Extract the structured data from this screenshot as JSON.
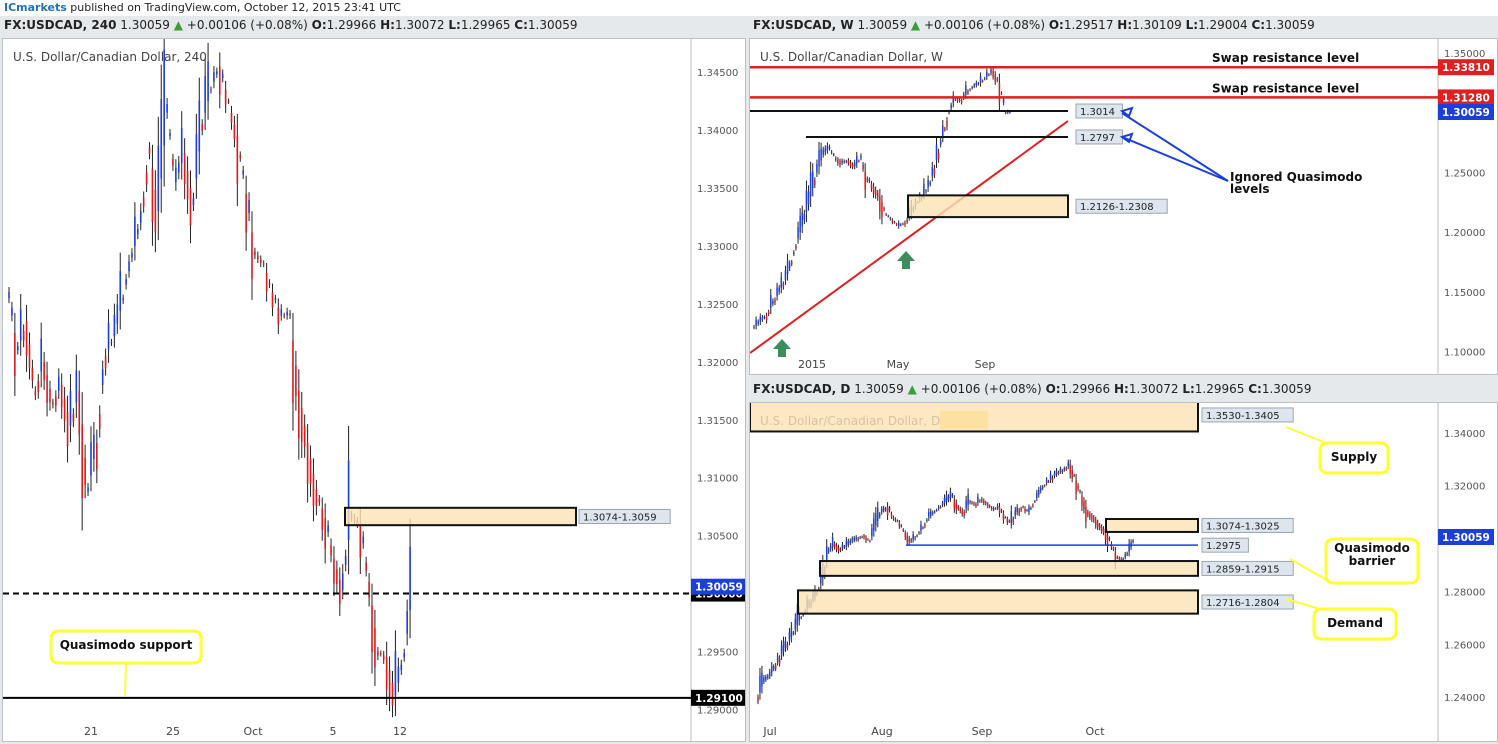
{
  "topbar": {
    "brand": "ICmarkets",
    "text": " published on TradingView.com, October 12, 2015 23:41 UTC"
  },
  "colors": {
    "bull": "#1c3fd6",
    "bear": "#d91c1c",
    "zone_fill": "#fbe4b5",
    "callout": "#ffff33",
    "red_line": "#e02020",
    "blue_line": "#1a3fd9",
    "arrow_green": "#3c8c5c"
  },
  "panels": [
    {
      "id": "h4",
      "header": {
        "symbol": "FX:USDCAD, 240",
        "price": "1.30059",
        "change": "+0.00106 (+0.08%)",
        "o_label": "O:",
        "o": "1.29966",
        "h_label": "H:",
        "h": "1.30072",
        "l_label": "L:",
        "l": "1.29965",
        "c_label": "C:",
        "c": "1.30059"
      },
      "title": "U.S. Dollar/Canadian Dollar, 240",
      "chart_data": {
        "type": "candlestick",
        "timeframe": "240",
        "x_ticks": [
          "21",
          "25",
          "Oct",
          "5",
          "12"
        ],
        "y_ticks": [
          "1.34500",
          "1.34000",
          "1.33500",
          "1.33000",
          "1.32500",
          "1.32000",
          "1.31500",
          "1.31000",
          "1.30500",
          "1.30000",
          "1.29500",
          "1.29000"
        ],
        "ylim": [
          1.289,
          1.347
        ],
        "path": [
          1.3255,
          1.321,
          1.3235,
          1.3175,
          1.32,
          1.3165,
          1.318,
          1.3145,
          1.3175,
          1.3088,
          1.313,
          1.3205,
          1.3222,
          1.3255,
          1.329,
          1.332,
          1.3385,
          1.333,
          1.3415,
          1.3355,
          1.338,
          1.3335,
          1.3405,
          1.3435,
          1.3455,
          1.3425,
          1.3395,
          1.3345,
          1.3295,
          1.3285,
          1.326,
          1.324,
          1.324,
          1.3175,
          1.313,
          1.309,
          1.3065,
          1.303,
          1.3003,
          1.3068,
          1.306,
          1.301,
          1.295,
          1.2945,
          1.2912,
          1.2945,
          1.3006
        ],
        "levels": [
          {
            "price": 1.3,
            "label": "1.30000",
            "style": "dashed"
          },
          {
            "price": 1.291,
            "label": "1.29100",
            "style": "solid"
          }
        ],
        "zones": [
          {
            "label": "1.3074-1.3059",
            "top": 1.3074,
            "bottom": 1.3059
          }
        ],
        "last_price": "1.30059",
        "annotations": [
          {
            "text": "Quasimodo support"
          }
        ]
      }
    },
    {
      "id": "weekly",
      "header": {
        "symbol": "FX:USDCAD, W",
        "price": "1.30059",
        "change": "+0.00106 (+0.08%)",
        "o_label": "O:",
        "o": "1.29517",
        "h_label": "H:",
        "h": "1.30109",
        "l_label": "L:",
        "l": "1.29004",
        "c_label": "C:",
        "c": "1.30059"
      },
      "title": "U.S. Dollar/Canadian Dollar, W",
      "chart_data": {
        "type": "candlestick",
        "timeframe": "W",
        "x_ticks": [
          "2015",
          "May",
          "Sep"
        ],
        "y_ticks": [
          "1.35000",
          "1.30000",
          "1.25000",
          "1.20000",
          "1.15000",
          "1.10000"
        ],
        "ylim": [
          1.098,
          1.355
        ],
        "path": [
          1.12,
          1.125,
          1.13,
          1.14,
          1.15,
          1.16,
          1.175,
          1.195,
          1.21,
          1.23,
          1.25,
          1.265,
          1.27,
          1.262,
          1.258,
          1.26,
          1.255,
          1.262,
          1.245,
          1.238,
          1.23,
          1.215,
          1.21,
          1.205,
          1.208,
          1.215,
          1.225,
          1.232,
          1.24,
          1.26,
          1.28,
          1.3,
          1.312,
          1.31,
          1.318,
          1.322,
          1.325,
          1.33,
          1.335,
          1.325,
          1.3,
          1.3006
        ],
        "levels": [
          {
            "price": 1.3381,
            "label": "1.33810",
            "color": "red",
            "text": "Swap resistance level"
          },
          {
            "price": 1.3128,
            "label": "1.31280",
            "color": "red",
            "text": "Swap resistance level"
          },
          {
            "price": 1.3014,
            "label": "1.3014",
            "color": "black"
          },
          {
            "price": 1.2797,
            "label": "1.2797",
            "color": "black"
          }
        ],
        "zones": [
          {
            "label": "1.2126-1.2308",
            "top": 1.2308,
            "bottom": 1.2126
          }
        ],
        "last_price": "1.30059",
        "annotations": [
          {
            "text": "Ignored Quasimodo levels"
          }
        ]
      }
    },
    {
      "id": "daily",
      "header": {
        "symbol": "FX:USDCAD, D",
        "price": "1.30059",
        "change": "+0.00106 (+0.08%)",
        "o_label": "O:",
        "o": "1.29966",
        "h_label": "H:",
        "h": "1.30072",
        "l_label": "L:",
        "l": "1.29965",
        "c_label": "C:",
        "c": "1.30059"
      },
      "title": "U.S. Dollar/Canadian Dollar, D",
      "chart_data": {
        "type": "candlestick",
        "timeframe": "D",
        "x_ticks": [
          "Jul",
          "Aug",
          "Sep",
          "Oct"
        ],
        "y_ticks": [
          "1.34000",
          "1.32000",
          "1.30000",
          "1.28000",
          "1.26000",
          "1.24000"
        ],
        "ylim": [
          1.231,
          1.349
        ],
        "path": [
          1.24,
          1.246,
          1.248,
          1.252,
          1.256,
          1.26,
          1.264,
          1.269,
          1.272,
          1.276,
          1.279,
          1.285,
          1.295,
          1.298,
          1.296,
          1.297,
          1.299,
          1.3,
          1.301,
          1.299,
          1.305,
          1.31,
          1.312,
          1.308,
          1.306,
          1.302,
          1.299,
          1.301,
          1.304,
          1.308,
          1.31,
          1.312,
          1.314,
          1.316,
          1.312,
          1.31,
          1.314,
          1.313,
          1.315,
          1.313,
          1.311,
          1.312,
          1.308,
          1.306,
          1.31,
          1.312,
          1.31,
          1.314,
          1.318,
          1.321,
          1.323,
          1.325,
          1.326,
          1.328,
          1.322,
          1.316,
          1.31,
          1.308,
          1.305,
          1.303,
          1.298,
          1.293,
          1.292,
          1.295,
          1.3006
        ],
        "levels": [
          {
            "price": 1.2975,
            "label": "1.2975",
            "color": "blue"
          }
        ],
        "zones": [
          {
            "label": "1.3530-1.3405",
            "top": 1.353,
            "bottom": 1.3405
          },
          {
            "label": "1.3074-1.3025",
            "top": 1.3074,
            "bottom": 1.3025
          },
          {
            "label": "1.2859-1.2915",
            "top": 1.2915,
            "bottom": 1.2859
          },
          {
            "label": "1.2716-1.2804",
            "top": 1.2804,
            "bottom": 1.2716
          }
        ],
        "last_price": "1.30059",
        "annotations": [
          {
            "text": "Supply"
          },
          {
            "text": "Quasimodo barrier"
          },
          {
            "text": "Demand"
          }
        ]
      }
    }
  ]
}
